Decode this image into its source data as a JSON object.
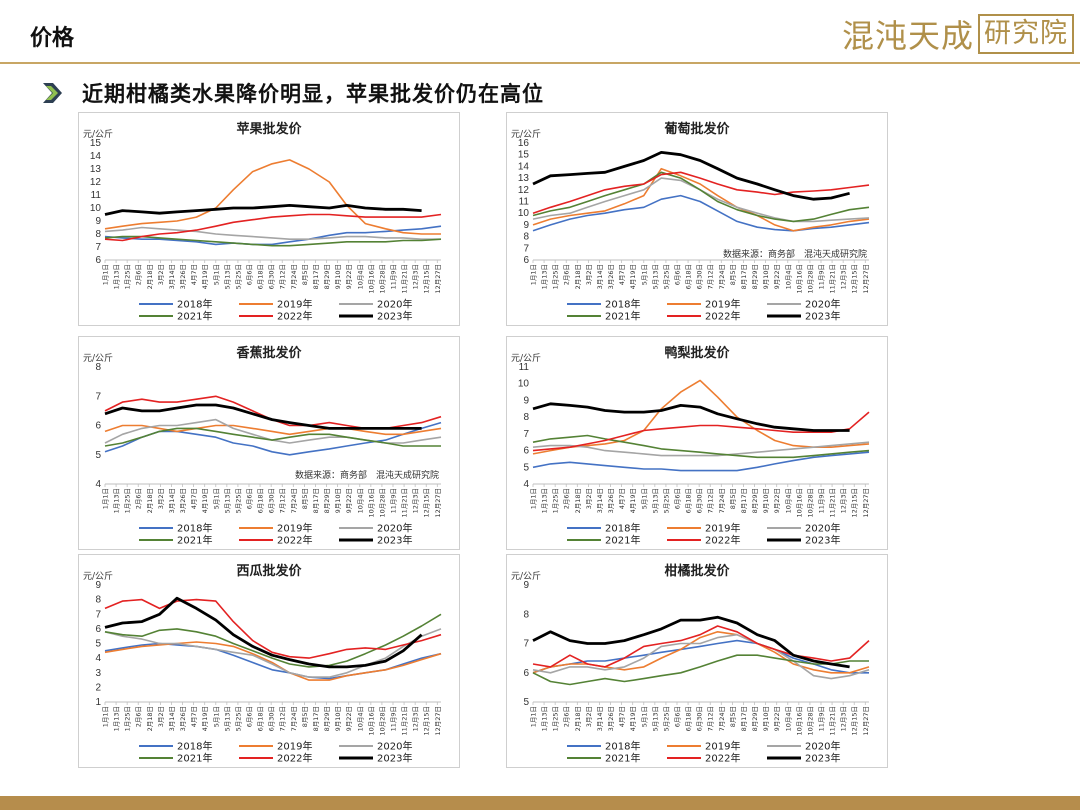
{
  "header": {
    "title": "价格",
    "subtitle": "近期柑橘类水果降价明显，苹果批发价仍在高位",
    "logo_main": "混沌天成",
    "logo_box": "研究院"
  },
  "colors": {
    "2018": "#4472c4",
    "2019": "#ed7d31",
    "2020": "#a5a5a5",
    "2021": "#548235",
    "2022": "#e32222",
    "2023": "#000000",
    "rule": "#c8a664",
    "footer": "#b68d4c"
  },
  "date_ticks": [
    "1月1日",
    "1月13日",
    "1月25日",
    "2月6日",
    "2月18日",
    "3月2日",
    "3月14日",
    "3月26日",
    "4月7日",
    "4月19日",
    "5月1日",
    "5月13日",
    "5月25日",
    "6月6日",
    "6月18日",
    "6月30日",
    "7月12日",
    "7月24日",
    "8月5日",
    "8月17日",
    "8月29日",
    "9月10日",
    "9月22日",
    "10月4日",
    "10月16日",
    "10月28日",
    "11月9日",
    "11月21日",
    "12月3日",
    "12月15日",
    "12月27日"
  ],
  "chart_data": [
    {
      "id": "apple",
      "type": "line",
      "title": "苹果批发价",
      "unit": "元/公斤",
      "ylim": [
        6,
        15
      ],
      "yticks": [
        6,
        7,
        8,
        9,
        10,
        11,
        12,
        13,
        14,
        15
      ],
      "source": "",
      "x": [
        "1月1日",
        "1月20日",
        "2月10日",
        "3月1日",
        "3月20日",
        "4月10日",
        "5月1日",
        "5月20日",
        "6月10日",
        "7月1日",
        "7月20日",
        "8月10日",
        "9月1日",
        "9月20日",
        "10月10日",
        "11月1日",
        "11月20日",
        "12月10日",
        "12月31日"
      ],
      "series": [
        {
          "name": "2018年",
          "values": [
            7.8,
            7.7,
            7.6,
            7.6,
            7.5,
            7.4,
            7.2,
            7.3,
            7.2,
            7.2,
            7.4,
            7.6,
            7.9,
            8.1,
            8.1,
            8.2,
            8.3,
            8.4,
            8.6
          ]
        },
        {
          "name": "2019年",
          "values": [
            8.4,
            8.6,
            8.8,
            8.9,
            9.0,
            9.3,
            10.0,
            11.4,
            12.8,
            13.4,
            13.7,
            13.0,
            12.0,
            10.2,
            8.8,
            8.4,
            8.1,
            8.0,
            8.0
          ]
        },
        {
          "name": "2020年",
          "values": [
            8.2,
            8.3,
            8.5,
            8.4,
            8.3,
            8.2,
            8.0,
            7.9,
            7.8,
            7.7,
            7.6,
            7.6,
            7.7,
            7.8,
            7.8,
            7.7,
            7.7,
            7.6,
            7.6
          ]
        },
        {
          "name": "2021年",
          "values": [
            7.7,
            7.8,
            7.8,
            7.7,
            7.6,
            7.5,
            7.4,
            7.3,
            7.2,
            7.1,
            7.1,
            7.2,
            7.3,
            7.4,
            7.4,
            7.4,
            7.5,
            7.5,
            7.6
          ]
        },
        {
          "name": "2022年",
          "values": [
            7.6,
            7.5,
            7.8,
            8.0,
            8.1,
            8.3,
            8.6,
            8.9,
            9.1,
            9.3,
            9.4,
            9.5,
            9.5,
            9.4,
            9.3,
            9.3,
            9.3,
            9.3,
            9.5
          ]
        },
        {
          "name": "2023年",
          "values": [
            9.5,
            9.8,
            9.7,
            9.6,
            9.7,
            9.8,
            9.9,
            10.0,
            10.0,
            10.1,
            10.2,
            10.1,
            10.0,
            10.2,
            10.0,
            9.9,
            9.9,
            9.8,
            null
          ]
        }
      ]
    },
    {
      "id": "grape",
      "type": "line",
      "title": "葡萄批发价",
      "unit": "元/公斤",
      "ylim": [
        6,
        16
      ],
      "yticks": [
        6,
        7,
        8,
        9,
        10,
        11,
        12,
        13,
        14,
        15,
        16
      ],
      "source": "数据来源：商务部　混沌天成研究院",
      "x": [
        "1月1日",
        "1月20日",
        "2月10日",
        "3月1日",
        "3月20日",
        "4月10日",
        "5月1日",
        "5月20日",
        "6月10日",
        "7月1日",
        "7月20日",
        "8月10日",
        "9月1日",
        "9月20日",
        "10月10日",
        "11月1日",
        "11月20日",
        "12月10日",
        "12月31日"
      ],
      "series": [
        {
          "name": "2018年",
          "values": [
            8.5,
            9.0,
            9.5,
            9.8,
            10.0,
            10.3,
            10.5,
            11.2,
            11.5,
            11.0,
            10.2,
            9.3,
            8.8,
            8.6,
            8.5,
            8.7,
            8.8,
            9.0,
            9.2
          ]
        },
        {
          "name": "2019年",
          "values": [
            9.0,
            9.5,
            9.8,
            10.0,
            10.2,
            10.8,
            11.5,
            13.8,
            13.2,
            12.5,
            11.5,
            10.5,
            9.8,
            9.0,
            8.5,
            8.8,
            9.0,
            9.3,
            9.5
          ]
        },
        {
          "name": "2020年",
          "values": [
            9.5,
            9.8,
            10.0,
            10.5,
            11.0,
            11.5,
            12.0,
            13.0,
            12.8,
            12.0,
            11.2,
            10.5,
            10.0,
            9.6,
            9.3,
            9.3,
            9.4,
            9.5,
            9.6
          ]
        },
        {
          "name": "2021年",
          "values": [
            9.8,
            10.2,
            10.5,
            11.0,
            11.5,
            12.0,
            12.5,
            13.5,
            13.0,
            12.0,
            11.0,
            10.3,
            9.8,
            9.5,
            9.3,
            9.5,
            9.9,
            10.3,
            10.5
          ]
        },
        {
          "name": "2022年",
          "values": [
            10.0,
            10.5,
            11.0,
            11.5,
            12.0,
            12.3,
            12.5,
            13.3,
            13.5,
            13.0,
            12.5,
            12.0,
            11.8,
            11.6,
            11.8,
            11.9,
            12.0,
            12.2,
            12.4
          ]
        },
        {
          "name": "2023年",
          "values": [
            12.5,
            13.2,
            13.3,
            13.4,
            13.5,
            14.0,
            14.5,
            15.2,
            15.0,
            14.5,
            13.8,
            13.0,
            12.5,
            12.0,
            11.5,
            11.2,
            11.3,
            11.7,
            null
          ]
        }
      ]
    },
    {
      "id": "banana",
      "type": "line",
      "title": "香蕉批发价",
      "unit": "元/公斤",
      "ylim": [
        4,
        8
      ],
      "yticks": [
        4,
        5,
        6,
        7,
        8
      ],
      "source": "数据来源：商务部　混沌天成研究院",
      "x": [
        "1月1日",
        "1月20日",
        "2月10日",
        "3月1日",
        "3月20日",
        "4月10日",
        "5月1日",
        "5月20日",
        "6月10日",
        "7月1日",
        "7月20日",
        "8月10日",
        "9月1日",
        "9月20日",
        "10月10日",
        "11月1日",
        "11月20日",
        "12月10日",
        "12月31日"
      ],
      "series": [
        {
          "name": "2018年",
          "values": [
            5.1,
            5.3,
            5.6,
            5.8,
            5.8,
            5.7,
            5.6,
            5.4,
            5.3,
            5.1,
            5.0,
            5.1,
            5.2,
            5.3,
            5.4,
            5.5,
            5.7,
            5.9,
            6.1
          ]
        },
        {
          "name": "2019年",
          "values": [
            5.8,
            6.0,
            6.0,
            5.9,
            5.8,
            5.9,
            6.0,
            6.0,
            5.9,
            5.8,
            5.7,
            5.8,
            5.9,
            5.9,
            5.8,
            5.7,
            5.7,
            5.8,
            5.9
          ]
        },
        {
          "name": "2020年",
          "values": [
            5.4,
            5.7,
            5.9,
            6.0,
            6.0,
            6.1,
            6.2,
            5.9,
            5.7,
            5.5,
            5.4,
            5.5,
            5.6,
            5.6,
            5.5,
            5.4,
            5.4,
            5.5,
            5.6
          ]
        },
        {
          "name": "2021年",
          "values": [
            5.3,
            5.4,
            5.6,
            5.8,
            5.9,
            5.9,
            5.8,
            5.7,
            5.6,
            5.5,
            5.6,
            5.7,
            5.7,
            5.6,
            5.5,
            5.4,
            5.3,
            5.3,
            5.3
          ]
        },
        {
          "name": "2022年",
          "values": [
            6.5,
            6.8,
            6.9,
            6.8,
            6.8,
            6.9,
            7.0,
            6.8,
            6.5,
            6.2,
            6.0,
            6.0,
            6.1,
            6.0,
            5.9,
            5.9,
            6.0,
            6.1,
            6.3
          ]
        },
        {
          "name": "2023年",
          "values": [
            6.4,
            6.6,
            6.5,
            6.5,
            6.6,
            6.7,
            6.7,
            6.6,
            6.4,
            6.2,
            6.1,
            6.0,
            5.9,
            5.9,
            5.9,
            5.9,
            5.9,
            5.9,
            null
          ]
        }
      ]
    },
    {
      "id": "pear",
      "type": "line",
      "title": "鸭梨批发价",
      "unit": "元/公斤",
      "ylim": [
        4,
        11
      ],
      "yticks": [
        4,
        5,
        6,
        7,
        8,
        9,
        10,
        11
      ],
      "source": "",
      "x": [
        "1月1日",
        "1月20日",
        "2月10日",
        "3月1日",
        "3月20日",
        "4月10日",
        "5月1日",
        "5月20日",
        "6月10日",
        "7月1日",
        "7月20日",
        "8月10日",
        "9月1日",
        "9月20日",
        "10月10日",
        "11月1日",
        "11月20日",
        "12月10日",
        "12月31日"
      ],
      "series": [
        {
          "name": "2018年",
          "values": [
            5.0,
            5.2,
            5.3,
            5.2,
            5.1,
            5.0,
            4.9,
            4.9,
            4.8,
            4.8,
            4.8,
            4.8,
            5.0,
            5.2,
            5.4,
            5.6,
            5.7,
            5.8,
            5.9
          ]
        },
        {
          "name": "2019年",
          "values": [
            5.8,
            6.0,
            6.2,
            6.3,
            6.4,
            6.6,
            7.2,
            8.5,
            9.5,
            10.2,
            9.2,
            8.0,
            7.2,
            6.6,
            6.3,
            6.2,
            6.2,
            6.3,
            6.4
          ]
        },
        {
          "name": "2020年",
          "values": [
            6.2,
            6.3,
            6.3,
            6.2,
            6.0,
            5.9,
            5.8,
            5.7,
            5.7,
            5.7,
            5.7,
            5.8,
            5.9,
            6.0,
            6.1,
            6.2,
            6.3,
            6.4,
            6.5
          ]
        },
        {
          "name": "2021年",
          "values": [
            6.5,
            6.7,
            6.8,
            6.9,
            6.7,
            6.5,
            6.3,
            6.1,
            6.0,
            5.9,
            5.8,
            5.7,
            5.6,
            5.6,
            5.6,
            5.7,
            5.8,
            5.9,
            6.0
          ]
        },
        {
          "name": "2022年",
          "values": [
            6.0,
            6.1,
            6.2,
            6.4,
            6.6,
            6.9,
            7.2,
            7.3,
            7.4,
            7.5,
            7.5,
            7.4,
            7.3,
            7.2,
            7.1,
            7.1,
            7.1,
            7.3,
            8.3
          ]
        },
        {
          "name": "2023年",
          "values": [
            8.5,
            8.8,
            8.7,
            8.6,
            8.4,
            8.3,
            8.3,
            8.4,
            8.7,
            8.6,
            8.2,
            7.9,
            7.6,
            7.4,
            7.3,
            7.2,
            7.2,
            7.2,
            null
          ]
        }
      ]
    },
    {
      "id": "watermelon",
      "type": "line",
      "title": "西瓜批发价",
      "unit": "元/公斤",
      "ylim": [
        1,
        9
      ],
      "yticks": [
        1,
        2,
        3,
        4,
        5,
        6,
        7,
        8,
        9
      ],
      "source": "",
      "x": [
        "1月1日",
        "1月20日",
        "2月10日",
        "3月1日",
        "3月20日",
        "4月10日",
        "5月1日",
        "5月20日",
        "6月10日",
        "7月1日",
        "7月20日",
        "8月10日",
        "9月1日",
        "9月20日",
        "10月10日",
        "11月1日",
        "11月20日",
        "12月10日",
        "12月31日"
      ],
      "series": [
        {
          "name": "2018年",
          "values": [
            4.5,
            4.7,
            4.9,
            5.0,
            4.9,
            4.8,
            4.6,
            4.2,
            3.7,
            3.2,
            3.0,
            2.7,
            2.6,
            2.8,
            3.0,
            3.2,
            3.6,
            4.0,
            4.3
          ]
        },
        {
          "name": "2019年",
          "values": [
            4.4,
            4.6,
            4.8,
            4.9,
            5.0,
            5.1,
            5.0,
            4.8,
            4.3,
            3.7,
            3.0,
            2.5,
            2.5,
            2.8,
            3.0,
            3.2,
            3.5,
            3.9,
            4.3
          ]
        },
        {
          "name": "2020年",
          "values": [
            5.8,
            5.5,
            5.3,
            5.0,
            5.0,
            4.8,
            4.6,
            4.4,
            4.2,
            3.6,
            3.0,
            2.7,
            2.7,
            3.0,
            3.5,
            4.0,
            4.8,
            5.5,
            6.0
          ]
        },
        {
          "name": "2021年",
          "values": [
            5.8,
            5.6,
            5.5,
            5.9,
            6.0,
            5.8,
            5.5,
            5.0,
            4.5,
            4.0,
            3.6,
            3.4,
            3.5,
            3.8,
            4.3,
            4.9,
            5.5,
            6.2,
            7.0
          ]
        },
        {
          "name": "2022年",
          "values": [
            7.4,
            7.9,
            8.0,
            7.4,
            7.9,
            8.0,
            7.9,
            6.5,
            5.2,
            4.4,
            4.1,
            4.0,
            4.3,
            4.6,
            4.7,
            4.6,
            4.9,
            5.2,
            5.6
          ]
        },
        {
          "name": "2023年",
          "values": [
            6.1,
            6.4,
            6.5,
            7.0,
            8.1,
            7.4,
            6.6,
            5.6,
            4.8,
            4.2,
            3.9,
            3.6,
            3.4,
            3.4,
            3.5,
            3.8,
            4.5,
            5.6,
            null
          ]
        }
      ]
    },
    {
      "id": "citrus",
      "type": "line",
      "title": "柑橘批发价",
      "unit": "元/公斤",
      "ylim": [
        5,
        9
      ],
      "yticks": [
        5,
        6,
        7,
        8,
        9
      ],
      "source": "",
      "x": [
        "1月1日",
        "1月20日",
        "2月10日",
        "3月1日",
        "3月20日",
        "4月10日",
        "5月1日",
        "5月20日",
        "6月10日",
        "7月1日",
        "7月20日",
        "8月10日",
        "9月1日",
        "9月20日",
        "10月10日",
        "11月1日",
        "11月20日",
        "12月10日",
        "12月31日"
      ],
      "series": [
        {
          "name": "2018年",
          "values": [
            6.0,
            6.2,
            6.3,
            6.4,
            6.4,
            6.5,
            6.6,
            6.7,
            6.8,
            6.9,
            7.0,
            7.1,
            7.0,
            6.8,
            6.5,
            6.3,
            6.1,
            6.0,
            6.0
          ]
        },
        {
          "name": "2019年",
          "values": [
            6.0,
            6.2,
            6.3,
            6.3,
            6.2,
            6.1,
            6.2,
            6.5,
            6.8,
            7.2,
            7.4,
            7.3,
            7.0,
            6.7,
            6.3,
            6.1,
            6.0,
            6.0,
            6.2
          ]
        },
        {
          "name": "2020年",
          "values": [
            6.1,
            6.0,
            6.2,
            6.2,
            6.1,
            6.2,
            6.5,
            6.9,
            7.0,
            7.0,
            7.2,
            7.3,
            7.0,
            6.8,
            6.4,
            5.9,
            5.8,
            5.9,
            6.1
          ]
        },
        {
          "name": "2021年",
          "values": [
            6.0,
            5.7,
            5.6,
            5.7,
            5.8,
            5.7,
            5.8,
            5.9,
            6.0,
            6.2,
            6.4,
            6.6,
            6.6,
            6.5,
            6.4,
            6.3,
            6.3,
            6.4,
            6.4
          ]
        },
        {
          "name": "2022年",
          "values": [
            6.3,
            6.2,
            6.6,
            6.3,
            6.2,
            6.5,
            6.9,
            7.0,
            7.1,
            7.3,
            7.6,
            7.4,
            7.0,
            6.8,
            6.6,
            6.5,
            6.4,
            6.5,
            7.1
          ]
        },
        {
          "name": "2023年",
          "values": [
            7.1,
            7.4,
            7.1,
            7.0,
            7.0,
            7.1,
            7.3,
            7.5,
            7.8,
            7.8,
            7.9,
            7.7,
            7.3,
            7.1,
            6.6,
            6.4,
            6.3,
            6.2,
            null
          ]
        }
      ]
    }
  ]
}
